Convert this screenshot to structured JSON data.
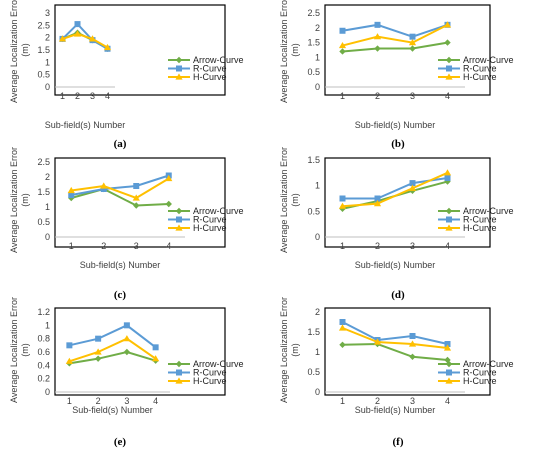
{
  "chart_data": [
    {
      "type": "line",
      "label": "(a)",
      "categories": [
        "1",
        "2",
        "3",
        "4"
      ],
      "ylim": [
        0,
        3
      ],
      "yticks": [
        "0",
        "0.5",
        "1",
        "1.5",
        "2",
        "2.5",
        "3"
      ],
      "xlabel": "Sub-field(s) Number",
      "ylabel": "Average Localization Error (m)",
      "legend_position": "bottom-right",
      "grid": false,
      "series": [
        {
          "name": "Arrow-Curve",
          "color": "#70ad47",
          "marker": "diamond",
          "values": [
            1.95,
            2.2,
            1.9,
            1.55
          ]
        },
        {
          "name": "R-Curve",
          "color": "#5b9bd5",
          "marker": "square",
          "values": [
            1.95,
            2.55,
            1.9,
            1.55
          ]
        },
        {
          "name": "H-Curve",
          "color": "#ffc000",
          "marker": "triangle",
          "values": [
            1.95,
            2.15,
            1.95,
            1.6
          ]
        }
      ]
    },
    {
      "type": "line",
      "label": "(b)",
      "categories": [
        "1",
        "2",
        "3",
        "4"
      ],
      "ylim": [
        0,
        2.5
      ],
      "yticks": [
        "0",
        "0.5",
        "1",
        "1.5",
        "2",
        "2.5"
      ],
      "xlabel": "Sub-field(s) Number",
      "ylabel": "Average Localization Error (m)",
      "legend_position": "bottom-right",
      "grid": false,
      "series": [
        {
          "name": "Arrow-Curve",
          "color": "#70ad47",
          "marker": "diamond",
          "values": [
            1.2,
            1.3,
            1.3,
            1.5
          ]
        },
        {
          "name": "R-Curve",
          "color": "#5b9bd5",
          "marker": "square",
          "values": [
            1.9,
            2.1,
            1.7,
            2.1
          ]
        },
        {
          "name": "H-Curve",
          "color": "#ffc000",
          "marker": "triangle",
          "values": [
            1.4,
            1.7,
            1.5,
            2.1
          ]
        }
      ]
    },
    {
      "type": "line",
      "label": "(c)",
      "categories": [
        "1",
        "2",
        "3",
        "4"
      ],
      "ylim": [
        0,
        2.5
      ],
      "yticks": [
        "0",
        "0.5",
        "1",
        "1.5",
        "2",
        "2.5"
      ],
      "xlabel": "Sub-field(s) Number",
      "ylabel": "Average Localization Error (m)",
      "legend_position": "bottom-right",
      "grid": false,
      "series": [
        {
          "name": "Arrow-Curve",
          "color": "#70ad47",
          "marker": "diamond",
          "values": [
            1.3,
            1.6,
            1.05,
            1.1
          ]
        },
        {
          "name": "R-Curve",
          "color": "#5b9bd5",
          "marker": "square",
          "values": [
            1.4,
            1.6,
            1.7,
            2.05
          ]
        },
        {
          "name": "H-Curve",
          "color": "#ffc000",
          "marker": "triangle",
          "values": [
            1.55,
            1.7,
            1.3,
            1.95
          ]
        }
      ]
    },
    {
      "type": "line",
      "label": "(d)",
      "categories": [
        "1",
        "2",
        "3",
        "4"
      ],
      "ylim": [
        0,
        1.5
      ],
      "yticks": [
        "0",
        "0.5",
        "1",
        "1.5"
      ],
      "xlabel": "Sub-field(s) Number",
      "ylabel": "Average Localization Error (m)",
      "legend_position": "bottom-right",
      "grid": false,
      "series": [
        {
          "name": "Arrow-Curve",
          "color": "#70ad47",
          "marker": "diamond",
          "values": [
            0.55,
            0.7,
            0.9,
            1.08
          ]
        },
        {
          "name": "R-Curve",
          "color": "#5b9bd5",
          "marker": "square",
          "values": [
            0.75,
            0.75,
            1.05,
            1.15
          ]
        },
        {
          "name": "H-Curve",
          "color": "#ffc000",
          "marker": "triangle",
          "values": [
            0.6,
            0.65,
            0.95,
            1.25
          ]
        }
      ]
    },
    {
      "type": "line",
      "label": "(e)",
      "categories": [
        "1",
        "2",
        "3",
        "4"
      ],
      "ylim": [
        0,
        1.2
      ],
      "yticks": [
        "0",
        "0.2",
        "0.4",
        "0.6",
        "0.8",
        "1",
        "1.2"
      ],
      "xlabel": "Sub-field(s) Number",
      "ylabel": "Average Localization Error (m)",
      "legend_position": "bottom-right",
      "grid": false,
      "series": [
        {
          "name": "Arrow-Curve",
          "color": "#70ad47",
          "marker": "diamond",
          "values": [
            0.43,
            0.5,
            0.6,
            0.47
          ]
        },
        {
          "name": "R-Curve",
          "color": "#5b9bd5",
          "marker": "square",
          "values": [
            0.7,
            0.8,
            1.0,
            0.67
          ]
        },
        {
          "name": "H-Curve",
          "color": "#ffc000",
          "marker": "triangle",
          "values": [
            0.46,
            0.6,
            0.8,
            0.5
          ]
        }
      ]
    },
    {
      "type": "line",
      "label": "(f)",
      "categories": [
        "1",
        "2",
        "3",
        "4"
      ],
      "ylim": [
        0,
        2
      ],
      "yticks": [
        "0",
        "0.5",
        "1",
        "1.5",
        "2"
      ],
      "xlabel": "Sub-field(s) Number",
      "ylabel": "Average Localization Error (m)",
      "legend_position": "bottom-right",
      "grid": false,
      "series": [
        {
          "name": "Arrow-Curve",
          "color": "#70ad47",
          "marker": "diamond",
          "values": [
            1.18,
            1.2,
            0.88,
            0.8
          ]
        },
        {
          "name": "R-Curve",
          "color": "#5b9bd5",
          "marker": "square",
          "values": [
            1.75,
            1.3,
            1.4,
            1.2
          ]
        },
        {
          "name": "H-Curve",
          "color": "#ffc000",
          "marker": "triangle",
          "values": [
            1.6,
            1.25,
            1.2,
            1.1
          ]
        }
      ]
    }
  ]
}
